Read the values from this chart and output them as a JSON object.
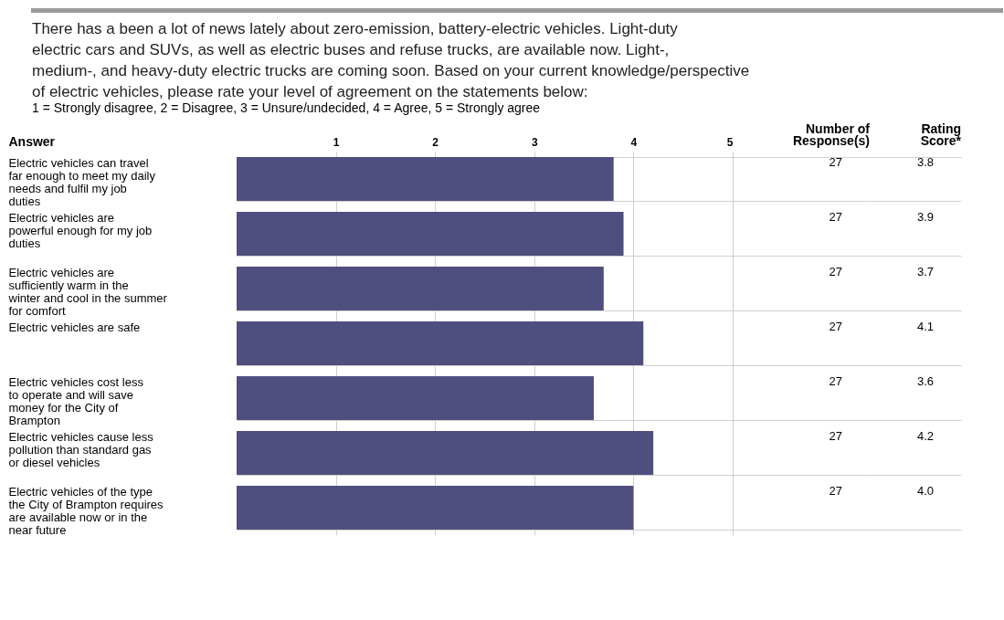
{
  "chart_data": {
    "type": "bar",
    "orientation": "horizontal",
    "title": "There has a been a lot of news lately about zero-emission, battery-electric vehicles. Light-duty electric cars and SUVs, as well as electric buses and refuse trucks, are available now. Light-, medium-, and heavy-duty electric trucks are coming soon. Based on your current knowledge/perspective of electric vehicles, please rate your level of agreement on the statements below:",
    "subtitle": "1 = Strongly disagree, 2 = Disagree, 3 = Unsure/undecided, 4 = Agree, 5 = Strongly agree",
    "ylabel": "Answer",
    "categories": [
      "Electric vehicles can travel far enough to meet my daily needs and fulfil my job duties",
      "Electric vehicles are powerful enough for my job duties",
      "Electric vehicles are sufficiently warm in the winter and cool in the summer for comfort",
      "Electric vehicles are safe",
      "Electric vehicles cost less to operate and will save money for the City of Brampton",
      "Electric vehicles cause less pollution than standard gas or diesel vehicles",
      "Electric vehicles of the type the City of Brampton requires are available now or in the near future"
    ],
    "values": [
      3.8,
      3.9,
      3.7,
      4.1,
      3.6,
      4.2,
      4.0
    ],
    "color": "#4f4f7f",
    "xlim": [
      0,
      5
    ],
    "xticks": [
      1,
      2,
      3,
      4,
      5
    ],
    "grid": true,
    "annotations": [
      "Number of Response(s)",
      "Rating Score*",
      "27",
      "27",
      "27",
      "27",
      "27",
      "27",
      "27",
      "3.8",
      "3.9",
      "3.7",
      "4.1",
      "3.6",
      "4.2",
      "4.0"
    ]
  }
}
